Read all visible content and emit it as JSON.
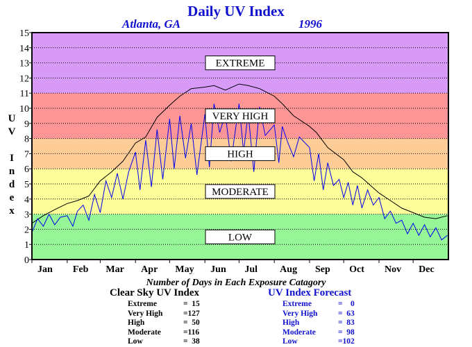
{
  "header": {
    "title": "Daily UV Index",
    "location": "Atlanta, GA",
    "year": "1996"
  },
  "chart_data": {
    "type": "line",
    "title": "Daily UV Index",
    "ylabel": "UV Index",
    "ylim": [
      0,
      15
    ],
    "yticks": [
      "0",
      "1",
      "2",
      "3",
      "4",
      "5",
      "6",
      "7",
      "8",
      "9",
      "10",
      "11",
      "12",
      "13",
      "14",
      "15"
    ],
    "xlim": [
      0,
      366
    ],
    "months": [
      "Jan",
      "Feb",
      "Mar",
      "Apr",
      "May",
      "Jun",
      "Jul",
      "Aug",
      "Sep",
      "Oct",
      "Nov",
      "Dec"
    ],
    "month_starts": [
      0,
      31,
      60,
      91,
      121,
      152,
      182,
      213,
      244,
      274,
      305,
      335
    ],
    "bands": [
      {
        "label": "LOW",
        "from": 0,
        "to": 3,
        "color": "#96f596"
      },
      {
        "label": "MODERATE",
        "from": 3,
        "to": 6,
        "color": "#fdfd9a"
      },
      {
        "label": "HIGH",
        "from": 6,
        "to": 8,
        "color": "#fecc96"
      },
      {
        "label": "VERY HIGH",
        "from": 8,
        "to": 11,
        "color": "#fc9696"
      },
      {
        "label": "EXTREME",
        "from": 11,
        "to": 15,
        "color": "#d89af7"
      }
    ],
    "grid": "dotted horizontal at each integer",
    "series": [
      {
        "name": "Clear Sky UV Index",
        "color": "#000000",
        "x": [
          0,
          10,
          20,
          31,
          40,
          50,
          60,
          70,
          80,
          91,
          100,
          110,
          121,
          130,
          140,
          152,
          160,
          170,
          182,
          190,
          200,
          213,
          220,
          230,
          244,
          250,
          260,
          274,
          282,
          290,
          305,
          315,
          325,
          335,
          345,
          355,
          365
        ],
        "y": [
          2.4,
          2.9,
          3.3,
          3.7,
          3.9,
          4.2,
          5.2,
          5.8,
          6.5,
          7.7,
          8.1,
          9.4,
          10.2,
          10.8,
          11.3,
          11.4,
          11.5,
          11.2,
          11.6,
          11.5,
          11.3,
          10.8,
          10.3,
          9.5,
          8.8,
          8.4,
          7.4,
          6.6,
          5.8,
          5.4,
          4.4,
          3.9,
          3.4,
          3.1,
          2.8,
          2.7,
          2.9
        ]
      },
      {
        "name": "UV Index Forecast",
        "color": "#0000ee",
        "x": [
          0,
          5,
          10,
          15,
          20,
          25,
          31,
          36,
          40,
          45,
          50,
          55,
          60,
          65,
          70,
          75,
          80,
          85,
          91,
          95,
          100,
          105,
          110,
          115,
          121,
          125,
          130,
          135,
          140,
          145,
          152,
          156,
          160,
          165,
          170,
          175,
          182,
          186,
          190,
          195,
          200,
          205,
          213,
          217,
          220,
          225,
          230,
          235,
          244,
          248,
          252,
          256,
          260,
          265,
          270,
          274,
          278,
          282,
          286,
          290,
          295,
          300,
          305,
          310,
          315,
          320,
          325,
          330,
          335,
          340,
          345,
          350,
          355,
          360,
          365
        ],
        "y": [
          1.8,
          2.7,
          2.2,
          3.0,
          2.3,
          2.8,
          2.9,
          2.2,
          3.2,
          3.6,
          2.6,
          4.3,
          3.1,
          5.2,
          4.1,
          5.7,
          4.0,
          5.8,
          7.1,
          4.6,
          7.9,
          4.8,
          8.6,
          5.3,
          9.3,
          6.0,
          9.5,
          6.7,
          9.0,
          5.6,
          9.6,
          6.1,
          10.3,
          8.4,
          9.6,
          6.5,
          10.3,
          7.1,
          9.7,
          5.8,
          10.1,
          8.2,
          8.9,
          6.4,
          8.8,
          7.7,
          6.8,
          8.1,
          7.4,
          5.2,
          7.0,
          4.6,
          6.4,
          4.9,
          5.3,
          4.1,
          5.1,
          3.6,
          4.9,
          3.4,
          4.6,
          3.6,
          4.1,
          2.7,
          3.2,
          2.4,
          2.6,
          1.7,
          2.4,
          1.6,
          2.3,
          1.5,
          2.1,
          1.3,
          1.6
        ]
      }
    ]
  },
  "stats": {
    "caption": "Number of Days in Each Exposure Catagory",
    "clear_sky": {
      "header": "Clear Sky UV Index",
      "rows": [
        {
          "name": "Extreme",
          "value": "=  15"
        },
        {
          "name": "Very High",
          "value": "=127"
        },
        {
          "name": "High",
          "value": "=  50"
        },
        {
          "name": "Moderate",
          "value": "=116"
        },
        {
          "name": "Low",
          "value": "=  38"
        }
      ]
    },
    "forecast": {
      "header": "UV Index Forecast",
      "rows": [
        {
          "name": "Extreme",
          "value": "=    0"
        },
        {
          "name": "Very High",
          "value": "=  63"
        },
        {
          "name": "High",
          "value": "=  83"
        },
        {
          "name": "Moderate",
          "value": "=  98"
        },
        {
          "name": "Low",
          "value": "=102"
        }
      ]
    }
  }
}
